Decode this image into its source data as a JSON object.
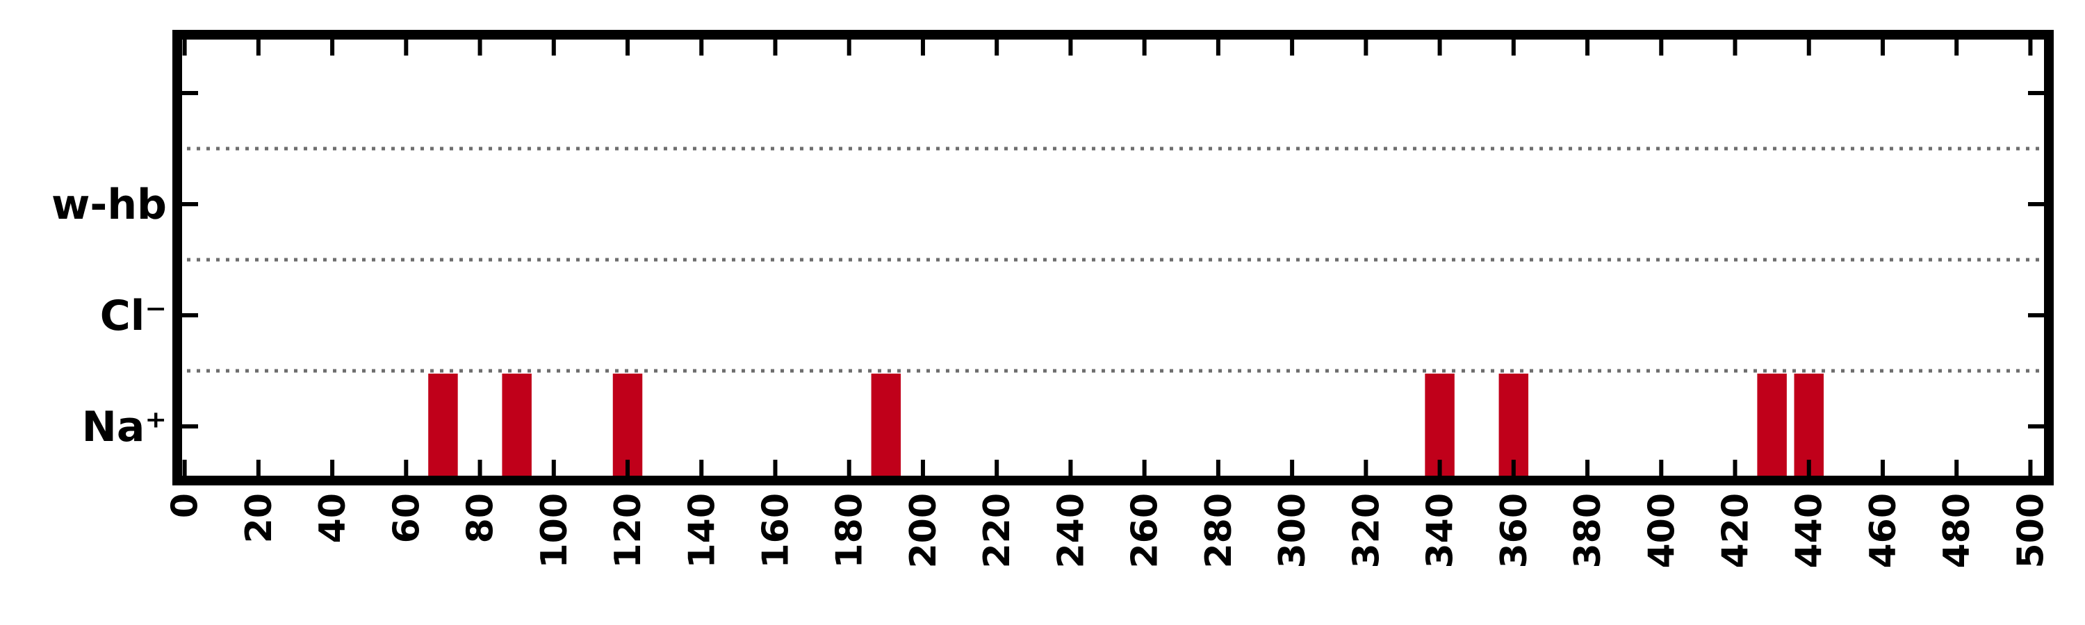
{
  "chart_data": {
    "type": "bar",
    "title": "",
    "xlabel": "",
    "ylabel": "",
    "xlim": [
      -2,
      505
    ],
    "x_ticks": [
      0,
      20,
      40,
      60,
      80,
      100,
      120,
      140,
      160,
      180,
      200,
      220,
      240,
      260,
      280,
      300,
      320,
      340,
      360,
      380,
      400,
      420,
      440,
      460,
      480,
      500
    ],
    "x_tick_labels": [
      "0",
      "20",
      "40",
      "60",
      "80",
      "100",
      "120",
      "140",
      "160",
      "180",
      "200",
      "220",
      "240",
      "260",
      "280",
      "300",
      "320",
      "340",
      "360",
      "380",
      "400",
      "420",
      "440",
      "460",
      "480",
      "500"
    ],
    "categories": [
      "Na⁺",
      "Cl⁻",
      "w-hb"
    ],
    "grid": "dotted separators between rows",
    "series": [
      {
        "category": "Na⁺",
        "color": "#c0001a",
        "events": [
          {
            "x": 70,
            "width": 8
          },
          {
            "x": 90,
            "width": 8
          },
          {
            "x": 120,
            "width": 8
          },
          {
            "x": 190,
            "width": 8
          },
          {
            "x": 340,
            "width": 8
          },
          {
            "x": 360,
            "width": 8
          },
          {
            "x": 430,
            "width": 8
          },
          {
            "x": 440,
            "width": 8
          }
        ]
      },
      {
        "category": "Cl⁻",
        "color": "#c0001a",
        "events": []
      },
      {
        "category": "w-hb",
        "color": "#c0001a",
        "events": []
      }
    ]
  }
}
